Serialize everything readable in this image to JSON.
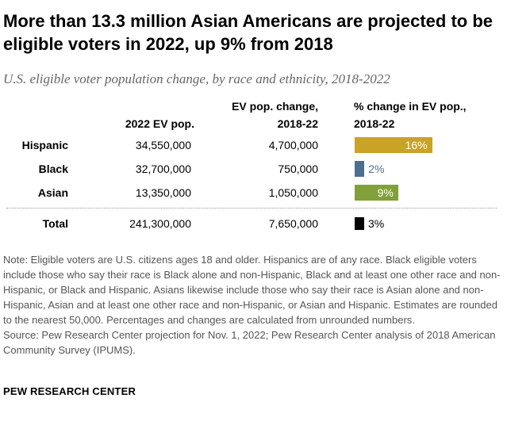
{
  "title": "More than 13.3 million Asian Americans are projected to be eligible voters in 2022, up 9% from 2018",
  "subtitle": "U.S. eligible voter population change, by race and ethnicity, 2018-2022",
  "columns": {
    "ev_pop": "2022 EV pop.",
    "change_line1": "EV pop. change,",
    "change_line2": "2018-22",
    "pct_line1": "% change in EV pop.,",
    "pct_line2": "2018-22"
  },
  "chart_data": {
    "type": "table",
    "rows": [
      {
        "category": "Hispanic",
        "ev_pop": "34,550,000",
        "change": "4,700,000",
        "pct": 16,
        "pct_label": "16%",
        "color": "#c9a227"
      },
      {
        "category": "Black",
        "ev_pop": "32,700,000",
        "change": "750,000",
        "pct": 2,
        "pct_label": "2%",
        "color": "#4d6f8f"
      },
      {
        "category": "Asian",
        "ev_pop": "13,350,000",
        "change": "1,050,000",
        "pct": 9,
        "pct_label": "9%",
        "color": "#80a039"
      },
      {
        "category": "Total",
        "ev_pop": "241,300,000",
        "change": "7,650,000",
        "pct": 3,
        "pct_label": "3%",
        "color": "#000000"
      }
    ]
  },
  "notes": {
    "note": "Note: Eligible voters are U.S. citizens ages 18 and older. Hispanics are of any race. Black eligible voters include those who say their race is Black alone and non-Hispanic, Black and at least one other race and non-Hispanic, or Black and Hispanic. Asians likewise include those who say their race is Asian alone and non-Hispanic, Asian and at least one other race and non-Hispanic, or Asian and Hispanic. Estimates are rounded to the nearest 50,000. Percentages and changes are calculated from unrounded numbers.",
    "source": "Source: Pew Research Center projection for Nov. 1, 2022; Pew Research Center analysis of 2018 American Community Survey (IPUMS)."
  },
  "brand": "PEW RESEARCH CENTER"
}
